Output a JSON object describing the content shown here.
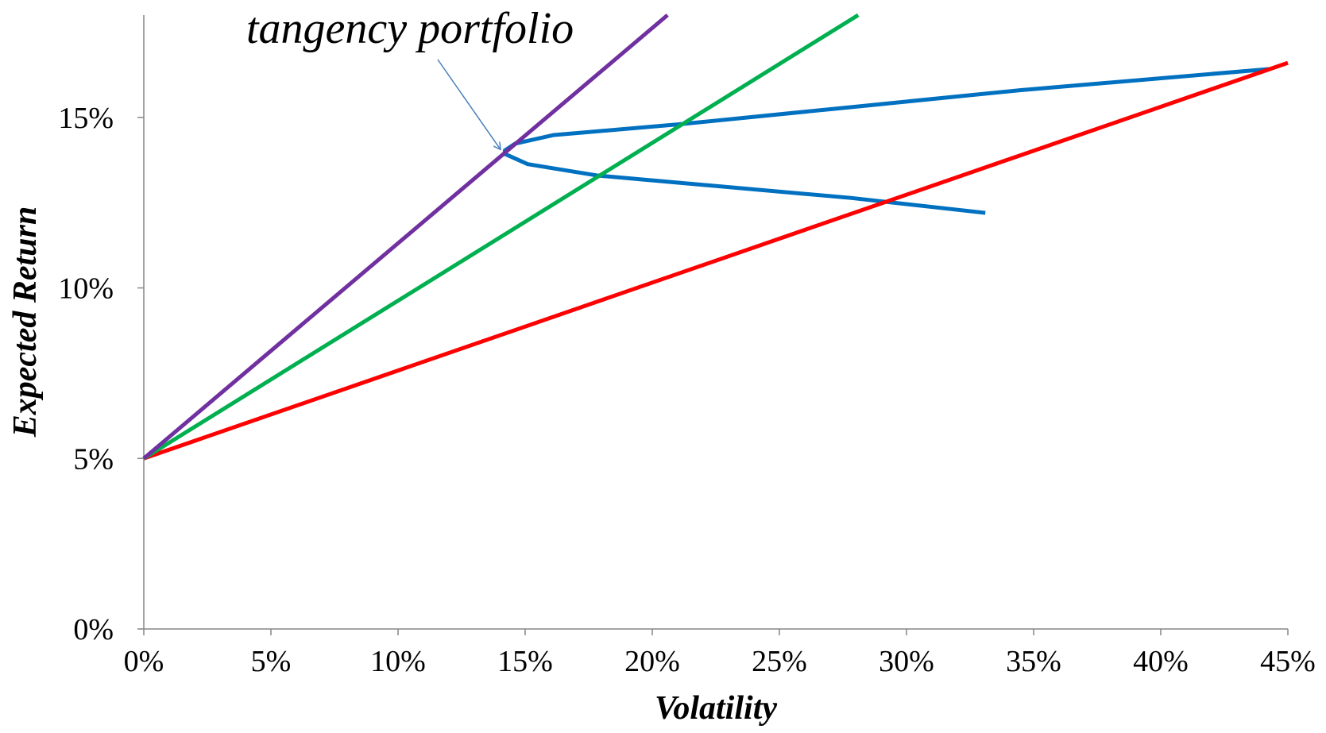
{
  "chart_data": {
    "type": "line",
    "xlabel": "Volatility",
    "ylabel": "Expected Return",
    "annotation": "tangency portfolio",
    "xlim": [
      0,
      45
    ],
    "ylim": [
      0,
      18
    ],
    "xticks": [
      {
        "value": 0,
        "label": "0%"
      },
      {
        "value": 5,
        "label": "5%"
      },
      {
        "value": 10,
        "label": "10%"
      },
      {
        "value": 15,
        "label": "15%"
      },
      {
        "value": 20,
        "label": "20%"
      },
      {
        "value": 25,
        "label": "25%"
      },
      {
        "value": 30,
        "label": "30%"
      },
      {
        "value": 35,
        "label": "35%"
      },
      {
        "value": 40,
        "label": "40%"
      },
      {
        "value": 45,
        "label": "45%"
      }
    ],
    "yticks": [
      {
        "value": 0,
        "label": "0%"
      },
      {
        "value": 5,
        "label": "5%"
      },
      {
        "value": 10,
        "label": "10%"
      },
      {
        "value": 15,
        "label": "15%"
      }
    ],
    "series": [
      {
        "color": "#0070c0",
        "x": [
          33.1,
          27.8,
          21.1,
          17.8,
          15.1,
          14.2,
          14.2,
          14.6,
          16.1,
          21.1,
          27.8,
          34.5,
          44.3
        ],
        "values": [
          12.2,
          12.64,
          13.08,
          13.3,
          13.63,
          13.93,
          14.03,
          14.23,
          14.48,
          14.8,
          15.3,
          15.8,
          16.42
        ]
      },
      {
        "color": "#ff0000",
        "x": [
          0,
          45
        ],
        "values": [
          5,
          16.6
        ]
      },
      {
        "color": "#00b050",
        "x": [
          0,
          28.1
        ],
        "values": [
          5,
          18
        ]
      },
      {
        "color": "#7030a0",
        "x": [
          0,
          20.6
        ],
        "values": [
          5,
          18
        ]
      }
    ]
  }
}
